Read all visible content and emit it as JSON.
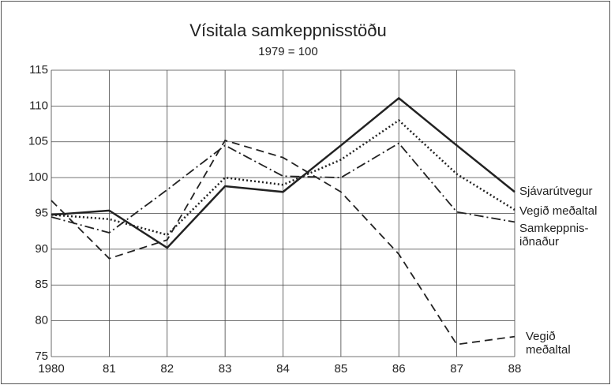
{
  "chart_data": {
    "type": "line",
    "title": "Vísitala samkeppnisstöðu",
    "subtitle": "1979 = 100",
    "categories": [
      "1980",
      "81",
      "82",
      "83",
      "84",
      "85",
      "86",
      "87",
      "88"
    ],
    "ylim": [
      75,
      115
    ],
    "yticks": [
      75,
      80,
      85,
      90,
      95,
      100,
      105,
      110,
      115
    ],
    "grid": true,
    "series": [
      {
        "name": "Sjávarútvegur",
        "color": "#222222",
        "dash": "solid",
        "values": [
          94.8,
          95.4,
          90.2,
          98.8,
          98.0,
          104.5,
          111.1,
          104.5,
          98.0
        ]
      },
      {
        "name": "Vegið meðaltal",
        "color": "#222222",
        "dash": "dotted",
        "values": [
          94.8,
          94.2,
          92.0,
          100.0,
          99.0,
          102.5,
          108.0,
          100.5,
          95.5
        ]
      },
      {
        "name": "Samkeppnis-\niðnaður",
        "color": "#222222",
        "dash": "dashdot",
        "values": [
          94.5,
          92.3,
          98.3,
          104.5,
          100.2,
          100.0,
          104.8,
          95.2,
          93.8
        ]
      },
      {
        "name": "Vegið\nmeðaltal",
        "color": "#222222",
        "dash": "dashed",
        "values": [
          96.8,
          88.7,
          91.3,
          105.2,
          102.8,
          98.0,
          89.3,
          76.7,
          77.8
        ]
      }
    ]
  }
}
